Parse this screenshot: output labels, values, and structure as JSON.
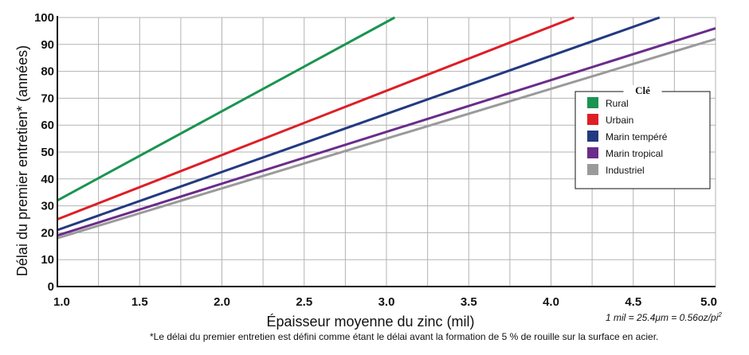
{
  "chart_data": {
    "type": "line",
    "xlabel": "Épaisseur moyenne du zinc (mil)",
    "ylabel": "Délai du premier entretien* (années)",
    "xlim": [
      1.0,
      5.0
    ],
    "ylim": [
      0,
      100
    ],
    "x_ticks": [
      "1.0",
      "1.5",
      "2.0",
      "2.5",
      "3.0",
      "3.5",
      "4.0",
      "4.5",
      "5.0"
    ],
    "y_ticks": [
      "0",
      "10",
      "20",
      "30",
      "40",
      "50",
      "60",
      "70",
      "80",
      "90",
      "100"
    ],
    "x_grid_step": 0.25,
    "y_grid_step": 10,
    "grid": true,
    "legend_title": "Clé",
    "legend_position": "right",
    "series": [
      {
        "name": "Rural",
        "color": "#1a9450",
        "x": [
          1.0,
          3.05
        ],
        "y": [
          32,
          100
        ]
      },
      {
        "name": "Urbain",
        "color": "#dd1f26",
        "x": [
          1.0,
          4.14
        ],
        "y": [
          25,
          100
        ]
      },
      {
        "name": "Marin tempéré",
        "color": "#233a80",
        "x": [
          1.0,
          4.66
        ],
        "y": [
          21,
          100
        ]
      },
      {
        "name": "Marin tropical",
        "color": "#6b2c8a",
        "x": [
          1.0,
          5.0
        ],
        "y": [
          19,
          96
        ]
      },
      {
        "name": "Industriel",
        "color": "#9a9a9a",
        "x": [
          1.0,
          5.0
        ],
        "y": [
          18,
          92
        ]
      }
    ]
  },
  "footnote": "*Le délai du premier entretien est défini comme étant le délai avant la formation de 5 % de rouille sur la surface en acier.",
  "unit_note": {
    "text": "1 mil = 25.4μm = 0.56oz/pi",
    "superscript": "2"
  }
}
